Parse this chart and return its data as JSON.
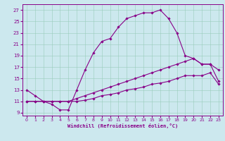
{
  "xlabel": "Windchill (Refroidissement éolien,°C)",
  "background_color": "#cce8ee",
  "grid_color": "#99ccbb",
  "line_color": "#880088",
  "spine_color": "#880088",
  "xlim": [
    -0.5,
    23.5
  ],
  "ylim": [
    8.5,
    28
  ],
  "xticks": [
    0,
    1,
    2,
    3,
    4,
    5,
    6,
    7,
    8,
    9,
    10,
    11,
    12,
    13,
    14,
    15,
    16,
    17,
    18,
    19,
    20,
    21,
    22,
    23
  ],
  "yticks": [
    9,
    11,
    13,
    15,
    17,
    19,
    21,
    23,
    25,
    27
  ],
  "line1_x": [
    0,
    1,
    2,
    3,
    4,
    5,
    6,
    7,
    8,
    9,
    10,
    11,
    12,
    13,
    14,
    15,
    16,
    17,
    18,
    19,
    20,
    21,
    22,
    23
  ],
  "line1_y": [
    13,
    12,
    11,
    10.5,
    9.5,
    9.5,
    13,
    16.5,
    19.5,
    21.5,
    22,
    24,
    25.5,
    26,
    26.5,
    26.5,
    27,
    25.5,
    23,
    19,
    18.5,
    17.5,
    17.5,
    16.5
  ],
  "line2_x": [
    0,
    1,
    2,
    3,
    4,
    5,
    6,
    7,
    8,
    9,
    10,
    11,
    12,
    13,
    14,
    15,
    16,
    17,
    18,
    19,
    20,
    21,
    22,
    23
  ],
  "line2_y": [
    11,
    11,
    11,
    11,
    11,
    11,
    11.5,
    12,
    12.5,
    13,
    13.5,
    14,
    14.5,
    15,
    15.5,
    16,
    16.5,
    17,
    17.5,
    18,
    18.5,
    17.5,
    17.5,
    14.5
  ],
  "line3_x": [
    0,
    1,
    2,
    3,
    4,
    5,
    6,
    7,
    8,
    9,
    10,
    11,
    12,
    13,
    14,
    15,
    16,
    17,
    18,
    19,
    20,
    21,
    22,
    23
  ],
  "line3_y": [
    11,
    11,
    11,
    11,
    11,
    11,
    11,
    11.2,
    11.5,
    12,
    12.2,
    12.5,
    13,
    13.2,
    13.5,
    14,
    14.2,
    14.5,
    15,
    15.5,
    15.5,
    15.5,
    16,
    14
  ]
}
